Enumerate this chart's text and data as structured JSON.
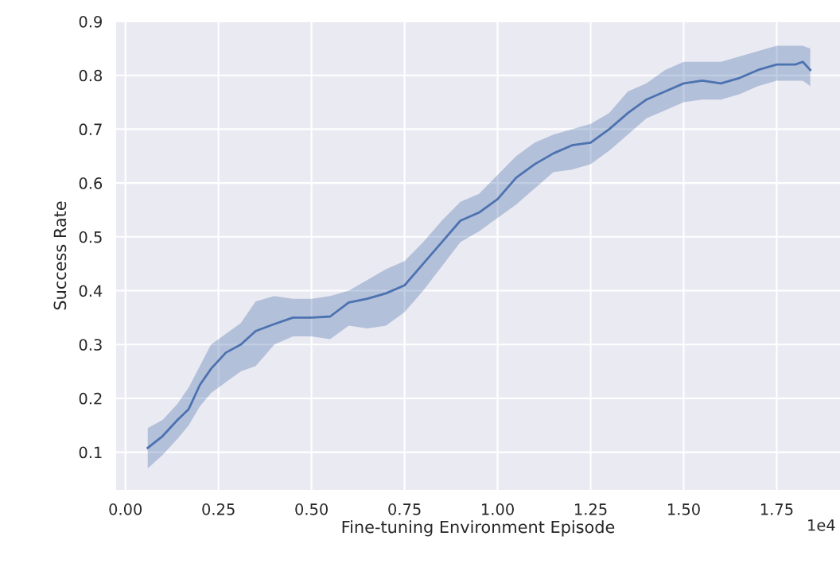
{
  "chart_data": {
    "type": "line",
    "xlabel": "Fine-tuning Environment Episode",
    "ylabel": "Success Rate",
    "annotations": [
      "1e4"
    ],
    "xlim": [
      -0.025,
      1.92
    ],
    "ylim": [
      0.03,
      0.9
    ],
    "xticks": [
      {
        "value": 0,
        "label": "0.00"
      },
      0.25,
      {
        "value": 0.5,
        "label": "0.50"
      },
      0.75,
      {
        "value": 1,
        "label": "1.00"
      },
      1.25,
      {
        "value": 1.5,
        "label": "1.50"
      },
      1.75
    ],
    "yticks": [
      0.1,
      0.2,
      0.3,
      0.4,
      0.5,
      0.6,
      0.7,
      0.8,
      0.9
    ],
    "grid": true,
    "x": [
      0.06,
      0.1,
      0.14,
      0.17,
      0.2,
      0.23,
      0.27,
      0.31,
      0.35,
      0.4,
      0.45,
      0.5,
      0.55,
      0.6,
      0.65,
      0.7,
      0.75,
      0.8,
      0.85,
      0.9,
      0.95,
      1.0,
      1.05,
      1.1,
      1.15,
      1.2,
      1.25,
      1.3,
      1.35,
      1.4,
      1.45,
      1.5,
      1.55,
      1.6,
      1.65,
      1.7,
      1.75,
      1.8,
      1.82,
      1.84
    ],
    "series": [
      {
        "color": "#4c72b0",
        "values": [
          0.108,
          0.13,
          0.16,
          0.18,
          0.225,
          0.255,
          0.285,
          0.3,
          0.325,
          0.338,
          0.35,
          0.35,
          0.352,
          0.378,
          0.385,
          0.395,
          0.41,
          0.45,
          0.49,
          0.53,
          0.545,
          0.57,
          0.61,
          0.635,
          0.655,
          0.67,
          0.675,
          0.7,
          0.73,
          0.755,
          0.77,
          0.785,
          0.79,
          0.785,
          0.795,
          0.81,
          0.82,
          0.82,
          0.825,
          0.81
        ],
        "lower": [
          0.07,
          0.095,
          0.125,
          0.15,
          0.185,
          0.21,
          0.23,
          0.25,
          0.26,
          0.3,
          0.315,
          0.315,
          0.31,
          0.335,
          0.33,
          0.335,
          0.36,
          0.4,
          0.445,
          0.49,
          0.51,
          0.535,
          0.56,
          0.59,
          0.62,
          0.625,
          0.635,
          0.66,
          0.69,
          0.72,
          0.735,
          0.75,
          0.755,
          0.755,
          0.765,
          0.78,
          0.79,
          0.79,
          0.79,
          0.78
        ],
        "upper": [
          0.145,
          0.16,
          0.19,
          0.22,
          0.26,
          0.3,
          0.32,
          0.34,
          0.38,
          0.39,
          0.385,
          0.385,
          0.39,
          0.4,
          0.42,
          0.44,
          0.455,
          0.49,
          0.53,
          0.565,
          0.58,
          0.615,
          0.65,
          0.675,
          0.69,
          0.7,
          0.71,
          0.73,
          0.77,
          0.785,
          0.81,
          0.825,
          0.825,
          0.825,
          0.835,
          0.845,
          0.855,
          0.855,
          0.855,
          0.85
        ]
      }
    ]
  }
}
